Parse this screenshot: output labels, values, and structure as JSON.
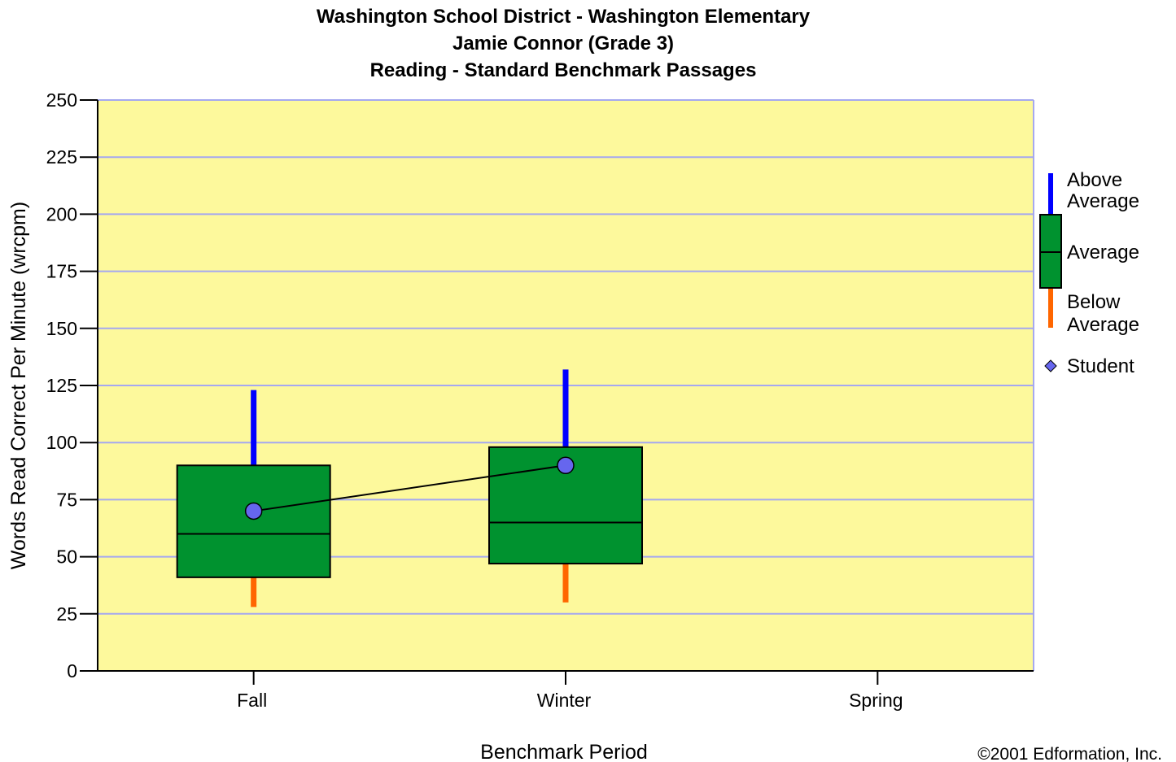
{
  "chart_data": {
    "type": "box",
    "title": [
      "Washington School District - Washington Elementary",
      "Jamie Connor (Grade 3)",
      "Reading - Standard Benchmark Passages"
    ],
    "xlabel": "Benchmark Period",
    "ylabel": "Words Read Correct Per Minute (wrcpm)",
    "ylim": [
      0,
      250
    ],
    "yticks": [
      0,
      25,
      50,
      75,
      100,
      125,
      150,
      175,
      200,
      225,
      250
    ],
    "categories": [
      "Fall",
      "Winter",
      "Spring"
    ],
    "boxes": [
      {
        "category": "Fall",
        "whisker_low": 28,
        "q1": 41,
        "median": 60,
        "q3": 90,
        "whisker_high": 123
      },
      {
        "category": "Winter",
        "whisker_low": 30,
        "q1": 47,
        "median": 65,
        "q3": 98,
        "whisker_high": 132
      }
    ],
    "student": {
      "name": "Student",
      "values": [
        70,
        90
      ]
    },
    "legend": {
      "position": "right",
      "above": "Above\nAverage",
      "average": "Average",
      "below": "Below\nAverage",
      "student": "Student"
    },
    "grid": true,
    "colors": {
      "plot_bg": "#fdf99c",
      "grid": "#a5a8f0",
      "box": "#00922f",
      "above": "#0000ff",
      "below": "#ff6600",
      "student": "#6666ee"
    }
  },
  "footer": {
    "copyright": "©2001 Edformation, Inc."
  }
}
